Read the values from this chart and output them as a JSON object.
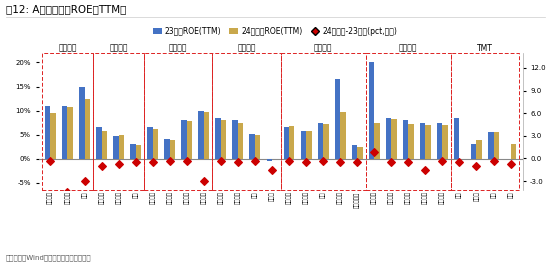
{
  "title": "图12: A股一级行业ROE（TTM）",
  "subtitle_note": "数据来源：Wind，广发证券发展研究中心",
  "legend": [
    "23年报ROE(TTM)",
    "24一季报ROE(TTM)",
    "24一季报-23年报(pct,右轴)"
  ],
  "bar_color_23": "#4472C4",
  "bar_color_24": "#C9A84C",
  "dot_color": "#CC0000",
  "box_color": "#DD2222",
  "groups": [
    {
      "name": "上游资源",
      "span": [
        0,
        2
      ]
    },
    {
      "name": "中游材料",
      "span": [
        3,
        5
      ]
    },
    {
      "name": "中游制造",
      "span": [
        6,
        9
      ]
    },
    {
      "name": "其他周期",
      "span": [
        10,
        13
      ]
    },
    {
      "name": "可选消费",
      "span": [
        14,
        18
      ]
    },
    {
      "name": "必需消费",
      "span": [
        19,
        23
      ]
    },
    {
      "name": "TMT",
      "span": [
        24,
        27
      ]
    }
  ],
  "categories": [
    "石油石化",
    "有色金属",
    "煤炭",
    "基础化工",
    "建筑材料",
    "钢铁",
    "机械设备",
    "国防军工",
    "建筑装饰",
    "电力设备",
    "公用事业",
    "交通运输",
    "环保",
    "房地产",
    "轻工制造",
    "社会服务",
    "汽车",
    "家用电器",
    "消费者服务",
    "农林牧渔",
    "纺织服装",
    "医药生物",
    "食品饮料",
    "农业材料",
    "电子",
    "计算机",
    "传媒",
    "通信"
  ],
  "bar23": [
    11.0,
    11.0,
    15.0,
    6.5,
    4.8,
    3.0,
    6.5,
    4.2,
    8.0,
    10.0,
    8.5,
    8.0,
    5.2,
    -0.5,
    6.5,
    5.8,
    7.5,
    16.5,
    2.8,
    20.0,
    8.5,
    8.0,
    7.5,
    7.5,
    8.5,
    3.0,
    5.5,
    0.0
  ],
  "bar24": [
    9.5,
    10.8,
    12.5,
    5.8,
    5.0,
    2.8,
    6.2,
    4.0,
    7.8,
    9.8,
    8.0,
    7.5,
    5.0,
    0.0,
    6.8,
    5.7,
    7.2,
    9.7,
    2.5,
    7.5,
    8.3,
    7.2,
    7.0,
    7.0,
    0.0,
    4.0,
    5.5,
    3.0
  ],
  "dot_diff": [
    -0.3,
    -4.5,
    -3.0,
    -1.0,
    -0.8,
    -0.5,
    -0.5,
    -0.3,
    -0.3,
    -3.0,
    -0.3,
    -0.5,
    -0.3,
    -1.5,
    -0.3,
    -0.5,
    -0.3,
    -0.5,
    -0.5,
    0.8,
    -0.5,
    -0.5,
    -1.5,
    -0.3,
    -0.5,
    -1.0,
    -0.3,
    -0.8
  ],
  "ylim_left": [
    -6.5,
    22
  ],
  "ylim_right": [
    -4.2,
    14.0
  ],
  "yticks_left": [
    -5,
    0,
    5,
    10,
    15,
    20
  ],
  "yticks_right": [
    -3.0,
    0.0,
    3.0,
    6.0,
    9.0,
    12.0
  ],
  "bar_width": 0.32
}
